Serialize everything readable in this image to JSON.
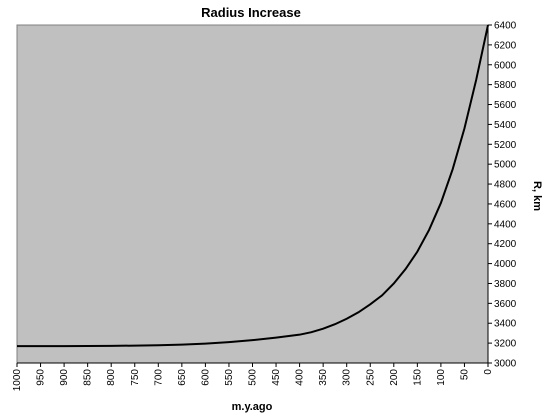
{
  "chart_data": {
    "type": "line",
    "title": "Radius Increase",
    "xlabel": "m.y.ago",
    "ylabel": "R, km",
    "xlim": [
      1000,
      0
    ],
    "ylim": [
      3000,
      6400
    ],
    "x_reversed": true,
    "y_axis_side": "right",
    "grid": false,
    "plot_background": "#c0c0c0",
    "line_color": "#000000",
    "x_ticks": [
      1000,
      950,
      900,
      850,
      800,
      750,
      700,
      650,
      600,
      550,
      500,
      450,
      400,
      350,
      300,
      250,
      200,
      150,
      100,
      50,
      0
    ],
    "y_ticks": [
      3000,
      3200,
      3400,
      3600,
      3800,
      4000,
      4200,
      4400,
      4600,
      4800,
      5000,
      5200,
      5400,
      5600,
      5800,
      6000,
      6200,
      6400
    ],
    "series": [
      {
        "x": [
          1000,
          900,
          800,
          700,
          650,
          600,
          550,
          500,
          450,
          400,
          375,
          350,
          325,
          300,
          275,
          250,
          225,
          200,
          175,
          150,
          125,
          100,
          75,
          50,
          25,
          0
        ],
        "y": [
          3170,
          3170,
          3172,
          3178,
          3185,
          3195,
          3210,
          3230,
          3255,
          3285,
          3310,
          3345,
          3390,
          3445,
          3510,
          3590,
          3680,
          3800,
          3945,
          4120,
          4340,
          4610,
          4950,
          5360,
          5850,
          6400
        ]
      }
    ]
  }
}
